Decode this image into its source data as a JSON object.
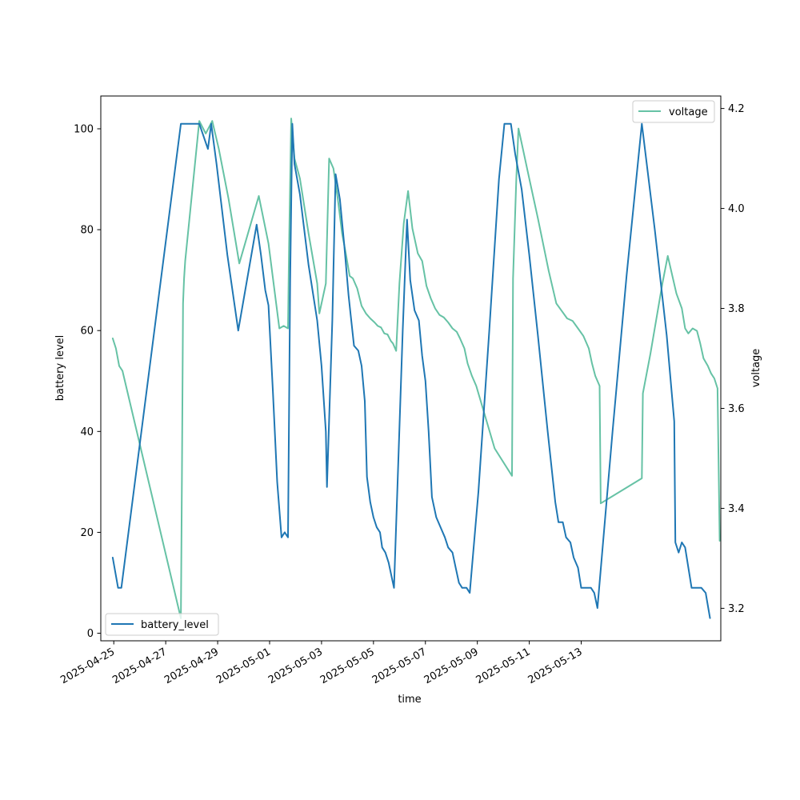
{
  "chart_data": {
    "type": "line",
    "xlabel": "time",
    "ylabel_left": "battery level",
    "ylabel_right": "voltage",
    "x_ticks": [
      "2025-04-25",
      "2025-04-27",
      "2025-04-29",
      "2025-05-01",
      "2025-05-03",
      "2025-05-05",
      "2025-05-07",
      "2025-05-09",
      "2025-05-11",
      "2025-05-13"
    ],
    "y_left_ticks": [
      "0",
      "20",
      "40",
      "60",
      "80",
      "100"
    ],
    "y_right_ticks": [
      "3.2",
      "3.4",
      "3.6",
      "3.8",
      "4.0",
      "4.2"
    ],
    "ylim_left": [
      -1.5,
      106.5
    ],
    "ylim_right": [
      3.135,
      4.225
    ],
    "legend_left": "lower left",
    "legend_right": "upper right",
    "grid": false,
    "series": [
      {
        "name": "battery_level",
        "axis": "left",
        "color": "#1f77b4",
        "points": [
          [
            "2025-04-24 23:00",
            15
          ],
          [
            "2025-04-25 04:00",
            9
          ],
          [
            "2025-04-25 07:00",
            9
          ],
          [
            "2025-04-27 14:00",
            101
          ],
          [
            "2025-04-28 07:00",
            101
          ],
          [
            "2025-04-28 15:00",
            96
          ],
          [
            "2025-04-28 18:00",
            101
          ],
          [
            "2025-04-28 23:00",
            93
          ],
          [
            "2025-04-29 09:00",
            75
          ],
          [
            "2025-04-29 19:00",
            60
          ],
          [
            "2025-04-30 12:00",
            81
          ],
          [
            "2025-04-30 16:00",
            75
          ],
          [
            "2025-04-30 20:00",
            68
          ],
          [
            "2025-04-30 23:00",
            65
          ],
          [
            "2025-05-01 03:00",
            48
          ],
          [
            "2025-05-01 07:00",
            30
          ],
          [
            "2025-05-01 11:00",
            19
          ],
          [
            "2025-05-01 14:00",
            20
          ],
          [
            "2025-05-01 17:00",
            19
          ],
          [
            "2025-05-01 19:00",
            70
          ],
          [
            "2025-05-01 21:00",
            101
          ],
          [
            "2025-05-01 23:00",
            93
          ],
          [
            "2025-05-02 04:00",
            87
          ],
          [
            "2025-05-02 12:00",
            73
          ],
          [
            "2025-05-02 20:00",
            62
          ],
          [
            "2025-05-03 00:00",
            53
          ],
          [
            "2025-05-03 04:00",
            40
          ],
          [
            "2025-05-03 05:00",
            29
          ],
          [
            "2025-05-03 10:00",
            62
          ],
          [
            "2025-05-03 13:00",
            91
          ],
          [
            "2025-05-03 17:00",
            86
          ],
          [
            "2025-05-03 21:00",
            77
          ],
          [
            "2025-05-04 01:00",
            67
          ],
          [
            "2025-05-04 03:00",
            63
          ],
          [
            "2025-05-04 06:00",
            57
          ],
          [
            "2025-05-04 10:00",
            56
          ],
          [
            "2025-05-04 13:00",
            53
          ],
          [
            "2025-05-04 16:00",
            46
          ],
          [
            "2025-05-04 18:00",
            31
          ],
          [
            "2025-05-04 21:00",
            26
          ],
          [
            "2025-05-05 00:00",
            23
          ],
          [
            "2025-05-05 03:00",
            21
          ],
          [
            "2025-05-05 06:00",
            20
          ],
          [
            "2025-05-05 08:00",
            17
          ],
          [
            "2025-05-05 11:00",
            16
          ],
          [
            "2025-05-05 14:00",
            14
          ],
          [
            "2025-05-05 15:00",
            13
          ],
          [
            "2025-05-05 19:00",
            9
          ],
          [
            "2025-05-05 22:00",
            28
          ],
          [
            "2025-05-06 03:00",
            60
          ],
          [
            "2025-05-06 07:00",
            82
          ],
          [
            "2025-05-06 10:00",
            70
          ],
          [
            "2025-05-06 14:00",
            64
          ],
          [
            "2025-05-06 18:00",
            62
          ],
          [
            "2025-05-06 21:00",
            55
          ],
          [
            "2025-05-07 00:00",
            50
          ],
          [
            "2025-05-07 03:00",
            40
          ],
          [
            "2025-05-07 06:00",
            27
          ],
          [
            "2025-05-07 10:00",
            23
          ],
          [
            "2025-05-07 14:00",
            21
          ],
          [
            "2025-05-07 18:00",
            19
          ],
          [
            "2025-05-07 21:00",
            17
          ],
          [
            "2025-05-08 01:00",
            16
          ],
          [
            "2025-05-08 04:00",
            13
          ],
          [
            "2025-05-08 07:00",
            10
          ],
          [
            "2025-05-08 10:00",
            9
          ],
          [
            "2025-05-08 14:00",
            9
          ],
          [
            "2025-05-08 17:00",
            8
          ],
          [
            "2025-05-09 01:00",
            28
          ],
          [
            "2025-05-09 11:00",
            60
          ],
          [
            "2025-05-09 20:00",
            90
          ],
          [
            "2025-05-10 01:00",
            101
          ],
          [
            "2025-05-10 07:00",
            101
          ],
          [
            "2025-05-10 11:00",
            95
          ],
          [
            "2025-05-10 17:00",
            88
          ],
          [
            "2025-05-11 00:00",
            75
          ],
          [
            "2025-05-11 08:00",
            59
          ],
          [
            "2025-05-11 17:00",
            40
          ],
          [
            "2025-05-12 00:00",
            26
          ],
          [
            "2025-05-12 03:00",
            22
          ],
          [
            "2025-05-12 07:00",
            22
          ],
          [
            "2025-05-12 10:00",
            19
          ],
          [
            "2025-05-12 14:00",
            18
          ],
          [
            "2025-05-12 17:00",
            15
          ],
          [
            "2025-05-12 21:00",
            13
          ],
          [
            "2025-05-13 00:00",
            9
          ],
          [
            "2025-05-13 04:00",
            9
          ],
          [
            "2025-05-13 09:00",
            9
          ],
          [
            "2025-05-13 12:00",
            8
          ],
          [
            "2025-05-13 15:00",
            5
          ],
          [
            "2025-05-13 17:00",
            10
          ],
          [
            "2025-05-13 21:00",
            20
          ],
          [
            "2025-05-14 05:00",
            40
          ],
          [
            "2025-05-14 18:00",
            71
          ],
          [
            "2025-05-15 08:00",
            101
          ],
          [
            "2025-05-15 20:00",
            80
          ],
          [
            "2025-05-16 07:00",
            59
          ],
          [
            "2025-05-16 14:00",
            42
          ],
          [
            "2025-05-16 15:00",
            18
          ],
          [
            "2025-05-16 18:00",
            16
          ],
          [
            "2025-05-16 21:00",
            18
          ],
          [
            "2025-05-17 00:00",
            17
          ],
          [
            "2025-05-17 06:00",
            9
          ],
          [
            "2025-05-17 10:00",
            9
          ],
          [
            "2025-05-17 15:00",
            9
          ],
          [
            "2025-05-17 19:00",
            8
          ],
          [
            "2025-05-17 23:00",
            3
          ]
        ]
      },
      {
        "name": "voltage",
        "axis": "right",
        "color": "#66c2a5",
        "points": [
          [
            "2025-04-24 23:00",
            3.74
          ],
          [
            "2025-04-25 02:00",
            3.72
          ],
          [
            "2025-04-25 05:00",
            3.685
          ],
          [
            "2025-04-25 08:00",
            3.675
          ],
          [
            "2025-04-27 14:00",
            3.18
          ],
          [
            "2025-04-27 15:00",
            3.46
          ],
          [
            "2025-04-27 16:00",
            3.81
          ],
          [
            "2025-04-27 17:00",
            3.86
          ],
          [
            "2025-04-27 18:00",
            3.895
          ],
          [
            "2025-04-28 07:00",
            4.175
          ],
          [
            "2025-04-28 13:00",
            4.15
          ],
          [
            "2025-04-28 19:00",
            4.175
          ],
          [
            "2025-04-29 01:00",
            4.12
          ],
          [
            "2025-04-29 10:00",
            4.02
          ],
          [
            "2025-04-29 20:00",
            3.89
          ],
          [
            "2025-04-30 14:00",
            4.025
          ],
          [
            "2025-04-30 23:00",
            3.93
          ],
          [
            "2025-05-01 09:00",
            3.76
          ],
          [
            "2025-05-01 13:00",
            3.765
          ],
          [
            "2025-05-01 17:00",
            3.76
          ],
          [
            "2025-05-01 18:00",
            3.92
          ],
          [
            "2025-05-01 20:00",
            4.18
          ],
          [
            "2025-05-01 23:00",
            4.1
          ],
          [
            "2025-05-02 04:00",
            4.06
          ],
          [
            "2025-05-02 12:00",
            3.95
          ],
          [
            "2025-05-02 20:00",
            3.85
          ],
          [
            "2025-05-02 22:00",
            3.79
          ],
          [
            "2025-05-03 04:00",
            3.85
          ],
          [
            "2025-05-03 07:00",
            4.1
          ],
          [
            "2025-05-03 11:00",
            4.08
          ],
          [
            "2025-05-03 15:00",
            4.02
          ],
          [
            "2025-05-03 19:00",
            3.95
          ],
          [
            "2025-05-03 22:00",
            3.915
          ],
          [
            "2025-05-04 02:00",
            3.865
          ],
          [
            "2025-05-04 05:00",
            3.86
          ],
          [
            "2025-05-04 09:00",
            3.84
          ],
          [
            "2025-05-04 13:00",
            3.805
          ],
          [
            "2025-05-04 17:00",
            3.79
          ],
          [
            "2025-05-04 21:00",
            3.78
          ],
          [
            "2025-05-05 01:00",
            3.772
          ],
          [
            "2025-05-05 04:00",
            3.765
          ],
          [
            "2025-05-05 07:00",
            3.762
          ],
          [
            "2025-05-05 10:00",
            3.75
          ],
          [
            "2025-05-05 13:00",
            3.748
          ],
          [
            "2025-05-05 16:00",
            3.735
          ],
          [
            "2025-05-05 18:00",
            3.73
          ],
          [
            "2025-05-05 21:00",
            3.715
          ],
          [
            "2025-05-06 00:00",
            3.85
          ],
          [
            "2025-05-06 04:00",
            3.97
          ],
          [
            "2025-05-06 08:00",
            4.035
          ],
          [
            "2025-05-06 12:00",
            3.96
          ],
          [
            "2025-05-06 17:00",
            3.91
          ],
          [
            "2025-05-06 21:00",
            3.895
          ],
          [
            "2025-05-07 01:00",
            3.845
          ],
          [
            "2025-05-07 05:00",
            3.82
          ],
          [
            "2025-05-07 09:00",
            3.8
          ],
          [
            "2025-05-07 13:00",
            3.787
          ],
          [
            "2025-05-07 17:00",
            3.782
          ],
          [
            "2025-05-07 21:00",
            3.772
          ],
          [
            "2025-05-08 01:00",
            3.76
          ],
          [
            "2025-05-08 05:00",
            3.753
          ],
          [
            "2025-05-08 08:00",
            3.74
          ],
          [
            "2025-05-08 12:00",
            3.72
          ],
          [
            "2025-05-08 15:00",
            3.69
          ],
          [
            "2025-05-08 19:00",
            3.665
          ],
          [
            "2025-05-08 23:00",
            3.645
          ],
          [
            "2025-05-09 16:00",
            3.52
          ],
          [
            "2025-05-10 08:00",
            3.465
          ],
          [
            "2025-05-10 09:00",
            3.86
          ],
          [
            "2025-05-10 12:00",
            4.06
          ],
          [
            "2025-05-10 14:00",
            4.16
          ],
          [
            "2025-05-10 18:00",
            4.12
          ],
          [
            "2025-05-10 23:00",
            4.07
          ],
          [
            "2025-05-11 08:00",
            3.98
          ],
          [
            "2025-05-11 18:00",
            3.875
          ],
          [
            "2025-05-12 01:00",
            3.81
          ],
          [
            "2025-05-12 06:00",
            3.795
          ],
          [
            "2025-05-12 11:00",
            3.78
          ],
          [
            "2025-05-12 16:00",
            3.775
          ],
          [
            "2025-05-12 21:00",
            3.76
          ],
          [
            "2025-05-13 02:00",
            3.745
          ],
          [
            "2025-05-13 07:00",
            3.72
          ],
          [
            "2025-05-13 10:00",
            3.69
          ],
          [
            "2025-05-13 13:00",
            3.665
          ],
          [
            "2025-05-13 15:00",
            3.655
          ],
          [
            "2025-05-13 17:00",
            3.645
          ],
          [
            "2025-05-13 18:00",
            3.41
          ],
          [
            "2025-05-15 08:00",
            3.46
          ],
          [
            "2025-05-15 09:00",
            3.63
          ],
          [
            "2025-05-15 16:00",
            3.71
          ],
          [
            "2025-05-16 03:00",
            3.85
          ],
          [
            "2025-05-16 08:00",
            3.905
          ],
          [
            "2025-05-16 16:00",
            3.83
          ],
          [
            "2025-05-16 21:00",
            3.8
          ],
          [
            "2025-05-17 00:00",
            3.76
          ],
          [
            "2025-05-17 03:00",
            3.75
          ],
          [
            "2025-05-17 07:00",
            3.76
          ],
          [
            "2025-05-17 11:00",
            3.755
          ],
          [
            "2025-05-17 14:00",
            3.73
          ],
          [
            "2025-05-17 17:00",
            3.7
          ],
          [
            "2025-05-17 21:00",
            3.685
          ],
          [
            "2025-05-18 00:00",
            3.67
          ],
          [
            "2025-05-18 03:00",
            3.66
          ],
          [
            "2025-05-18 06:00",
            3.64
          ],
          [
            "2025-05-18 08:00",
            3.335
          ]
        ]
      }
    ]
  }
}
